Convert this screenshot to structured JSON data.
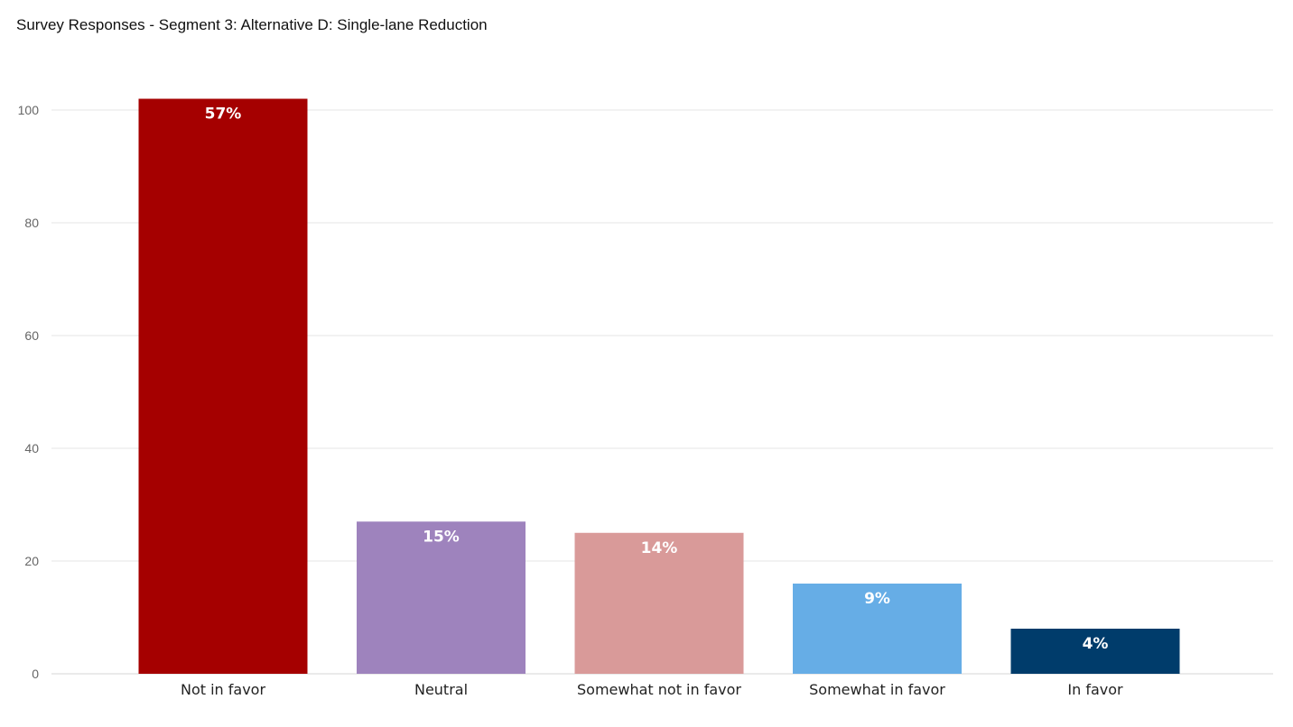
{
  "chart_data": {
    "type": "bar",
    "title": "Survey Responses - Segment 3: Alternative D: Single-lane Reduction",
    "xlabel": "",
    "ylabel": "",
    "categories": [
      "Not in favor",
      "Neutral",
      "Somewhat not in favor",
      "Somewhat in favor",
      "In favor"
    ],
    "values": [
      102,
      27,
      25,
      16,
      8
    ],
    "data_labels": [
      "57%",
      "15%",
      "14%",
      "9%",
      "4%"
    ],
    "colors": [
      "#a50000",
      "#9e83bd",
      "#d99a99",
      "#66ade6",
      "#003c6b"
    ],
    "ylim": [
      0,
      105
    ],
    "yticks": [
      0,
      20,
      40,
      60,
      80,
      100
    ],
    "grid": true,
    "legend": "none"
  }
}
